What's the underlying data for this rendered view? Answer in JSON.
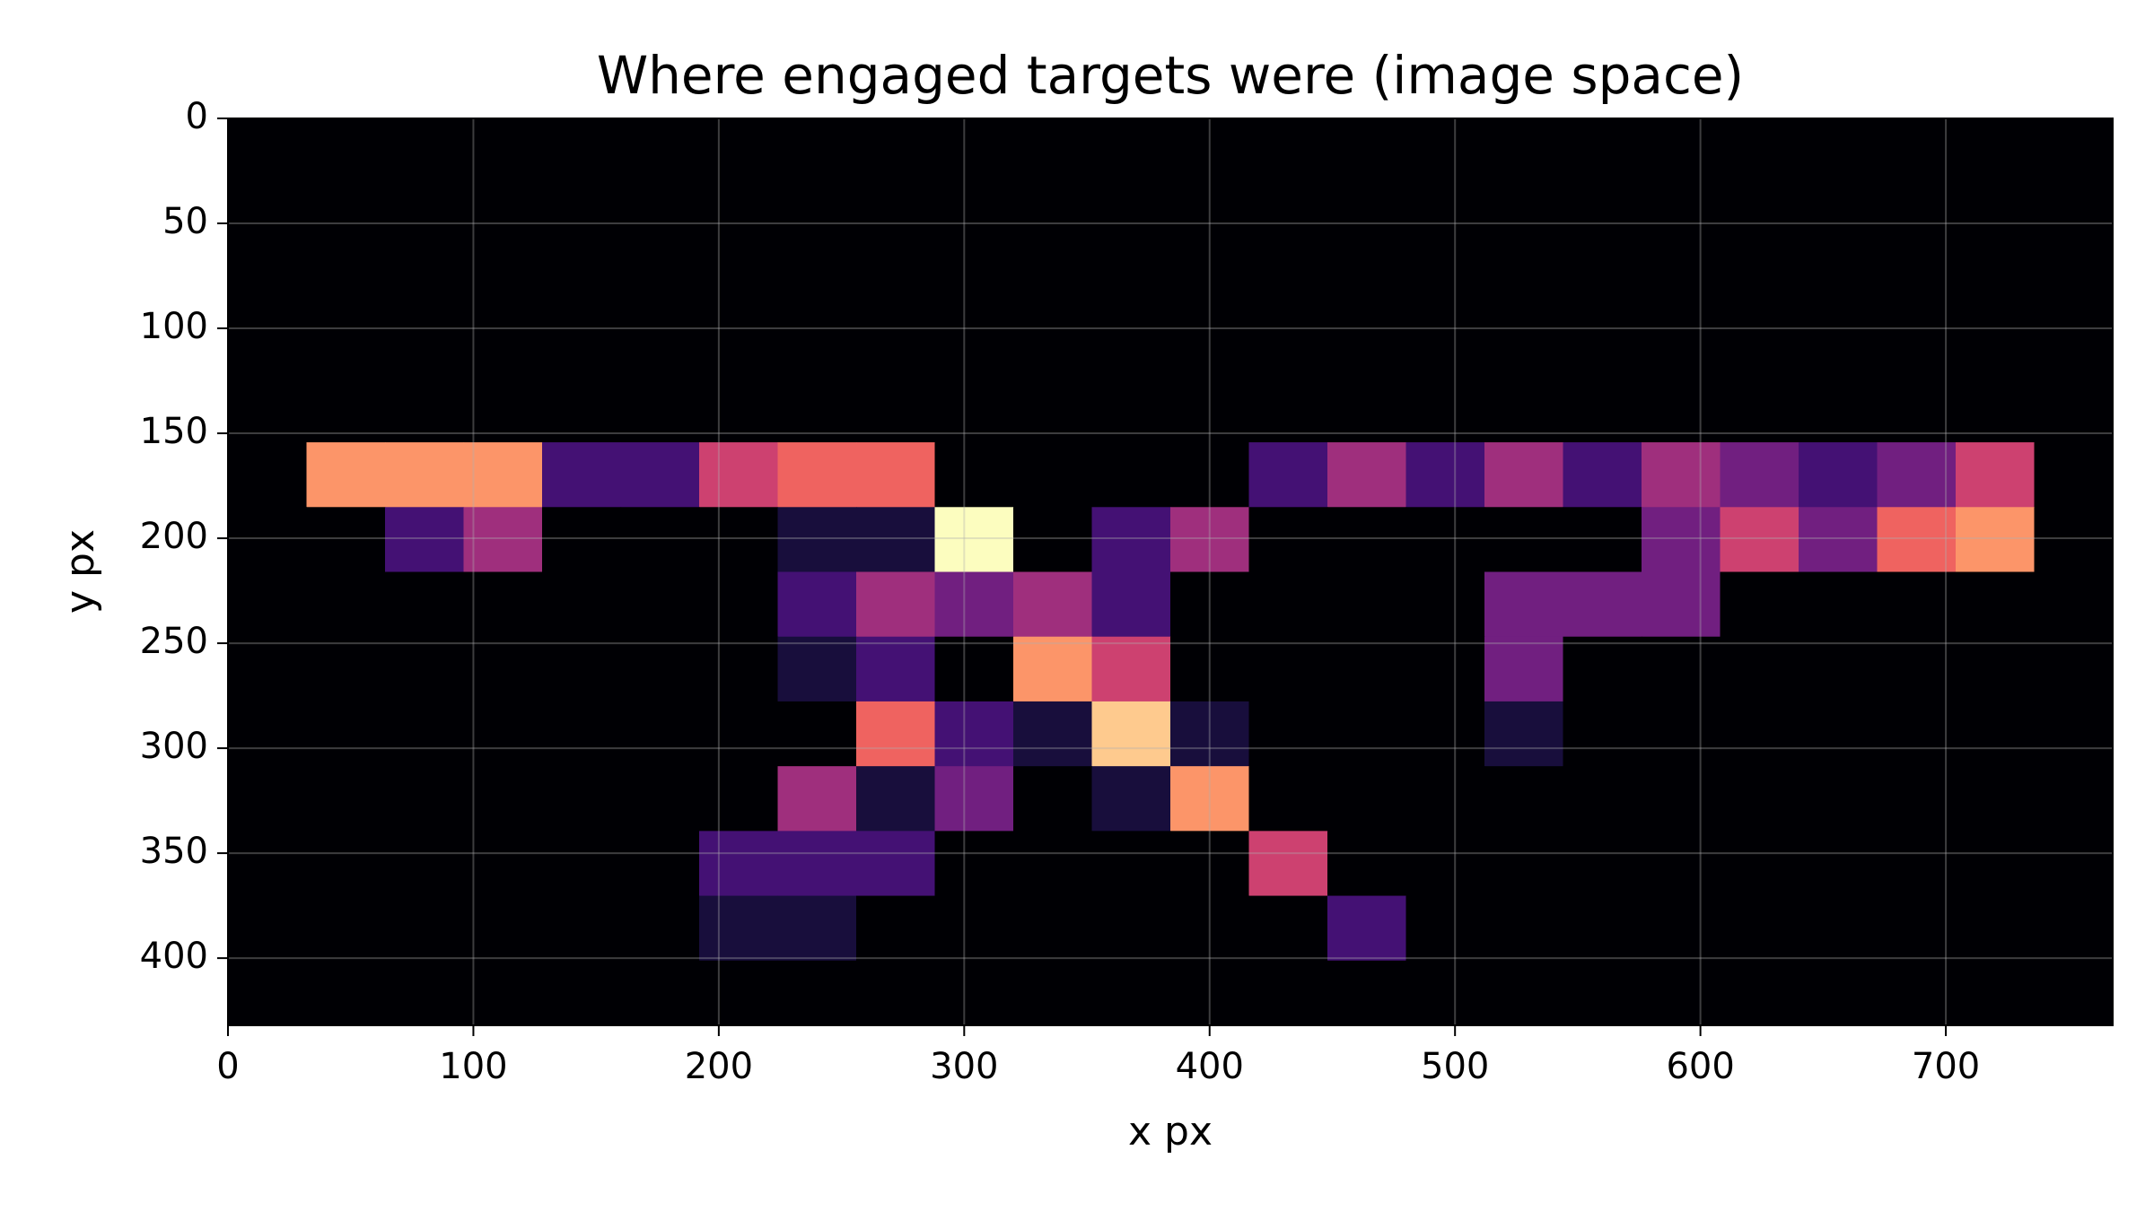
{
  "chart_data": {
    "type": "heatmap",
    "title": "Where engaged targets were (image space)",
    "xlabel": "x px",
    "ylabel": "y px",
    "colormap": "magma",
    "xlim": [
      0,
      768
    ],
    "ylim": [
      432,
      0
    ],
    "xticks": [
      0,
      100,
      200,
      300,
      400,
      500,
      600,
      700
    ],
    "yticks": [
      0,
      50,
      100,
      150,
      200,
      250,
      300,
      350,
      400
    ],
    "grid": true,
    "z": [
      [
        0,
        0,
        0,
        0,
        0,
        0,
        0,
        0,
        0,
        0,
        0,
        0,
        0,
        0,
        0,
        0,
        0,
        0,
        0,
        0,
        0,
        0,
        0,
        0
      ],
      [
        0,
        0,
        0,
        0,
        0,
        0,
        0,
        0,
        0,
        0,
        0,
        0,
        0,
        0,
        0,
        0,
        0,
        0,
        0,
        0,
        0,
        0,
        0,
        0
      ],
      [
        0,
        0,
        0,
        0,
        0,
        0,
        0,
        0,
        0,
        0,
        0,
        0,
        0,
        0,
        0,
        0,
        0,
        0,
        0,
        0,
        0,
        0,
        0,
        0
      ],
      [
        0,
        0,
        0,
        0,
        0,
        0,
        0,
        0,
        0,
        0,
        0,
        0,
        0,
        0,
        0,
        0,
        0,
        0,
        0,
        0,
        0,
        0,
        0,
        0
      ],
      [
        0,
        0,
        0,
        0,
        0,
        0,
        0,
        0,
        0,
        0,
        0,
        0,
        0,
        0,
        0,
        0,
        0,
        0,
        0,
        0,
        0,
        0,
        0,
        0
      ],
      [
        0,
        7,
        7,
        7,
        2,
        2,
        5,
        6,
        6,
        0,
        0,
        0,
        0,
        2,
        4,
        2,
        4,
        2,
        4,
        3,
        2,
        3,
        5,
        0
      ],
      [
        0,
        0,
        2,
        4,
        0,
        0,
        0,
        1,
        1,
        9,
        0,
        2,
        4,
        0,
        0,
        0,
        0,
        0,
        3,
        5,
        3,
        6,
        7,
        0
      ],
      [
        0,
        0,
        0,
        0,
        0,
        0,
        0,
        2,
        4,
        3,
        4,
        2,
        0,
        0,
        0,
        0,
        3,
        3,
        3,
        0,
        0,
        0,
        0,
        0
      ],
      [
        0,
        0,
        0,
        0,
        0,
        0,
        0,
        1,
        2,
        0,
        7,
        5,
        0,
        0,
        0,
        0,
        3,
        0,
        0,
        0,
        0,
        0,
        0,
        0
      ],
      [
        0,
        0,
        0,
        0,
        0,
        0,
        0,
        0,
        6,
        2,
        1,
        8,
        1,
        0,
        0,
        0,
        1,
        0,
        0,
        0,
        0,
        0,
        0,
        0
      ],
      [
        0,
        0,
        0,
        0,
        0,
        0,
        0,
        4,
        1,
        3,
        0,
        1,
        7,
        0,
        0,
        0,
        0,
        0,
        0,
        0,
        0,
        0,
        0,
        0
      ],
      [
        0,
        0,
        0,
        0,
        0,
        0,
        2,
        2,
        2,
        0,
        0,
        0,
        0,
        5,
        0,
        0,
        0,
        0,
        0,
        0,
        0,
        0,
        0,
        0
      ],
      [
        0,
        0,
        0,
        0,
        0,
        0,
        1,
        1,
        0,
        0,
        0,
        0,
        0,
        0,
        2,
        0,
        0,
        0,
        0,
        0,
        0,
        0,
        0,
        0
      ],
      [
        0,
        0,
        0,
        0,
        0,
        0,
        0,
        0,
        0,
        0,
        0,
        0,
        0,
        0,
        0,
        0,
        0,
        0,
        0,
        0,
        0,
        0,
        0,
        0
      ]
    ]
  }
}
